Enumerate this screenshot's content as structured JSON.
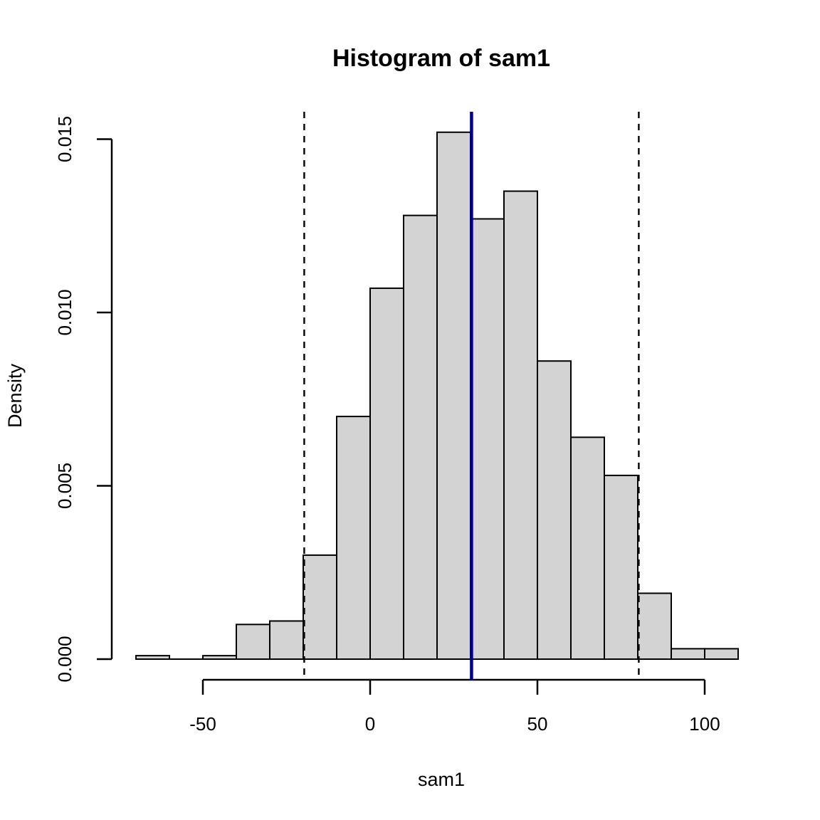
{
  "figure": {
    "background": "#ffffff"
  },
  "chart_data": {
    "type": "bar",
    "subtype": "histogram",
    "title": "Histogram of sam1",
    "xlabel": "sam1",
    "ylabel": "Density",
    "grid": false,
    "legend": null,
    "xlim": [
      -70,
      110
    ],
    "ylim": [
      0,
      0.0152
    ],
    "bin_width": 10,
    "x_ticks": [
      {
        "value": -50,
        "label": "-50"
      },
      {
        "value": 0,
        "label": "0"
      },
      {
        "value": 50,
        "label": "50"
      },
      {
        "value": 100,
        "label": "100"
      }
    ],
    "y_ticks": [
      {
        "value": 0.0,
        "label": "0.000"
      },
      {
        "value": 0.005,
        "label": "0.005"
      },
      {
        "value": 0.01,
        "label": "0.010"
      },
      {
        "value": 0.015,
        "label": "0.015"
      }
    ],
    "bins": [
      {
        "from": -70,
        "to": -60,
        "density": 0.0001
      },
      {
        "from": -60,
        "to": -50,
        "density": 0.0
      },
      {
        "from": -50,
        "to": -40,
        "density": 0.0001
      },
      {
        "from": -40,
        "to": -30,
        "density": 0.001
      },
      {
        "from": -30,
        "to": -20,
        "density": 0.0011
      },
      {
        "from": -20,
        "to": -10,
        "density": 0.003
      },
      {
        "from": -10,
        "to": 0,
        "density": 0.007
      },
      {
        "from": 0,
        "to": 10,
        "density": 0.0107
      },
      {
        "from": 10,
        "to": 20,
        "density": 0.0128
      },
      {
        "from": 20,
        "to": 30,
        "density": 0.0152
      },
      {
        "from": 30,
        "to": 40,
        "density": 0.0127
      },
      {
        "from": 40,
        "to": 50,
        "density": 0.0135
      },
      {
        "from": 50,
        "to": 60,
        "density": 0.0086
      },
      {
        "from": 60,
        "to": 70,
        "density": 0.0064
      },
      {
        "from": 70,
        "to": 80,
        "density": 0.0053
      },
      {
        "from": 80,
        "to": 90,
        "density": 0.0019
      },
      {
        "from": 90,
        "to": 100,
        "density": 0.0003
      },
      {
        "from": 100,
        "to": 110,
        "density": 0.0003
      }
    ],
    "bar_fill": "#d3d3d3",
    "bar_stroke": "#000000",
    "reference_lines": [
      {
        "x": 30.3,
        "style": "solid",
        "color": "#00008b",
        "name": "mean-line"
      },
      {
        "x": -19.7,
        "style": "dashed",
        "color": "#000000",
        "name": "lower-bound-line"
      },
      {
        "x": 80.3,
        "style": "dashed",
        "color": "#000000",
        "name": "upper-bound-line"
      }
    ]
  }
}
